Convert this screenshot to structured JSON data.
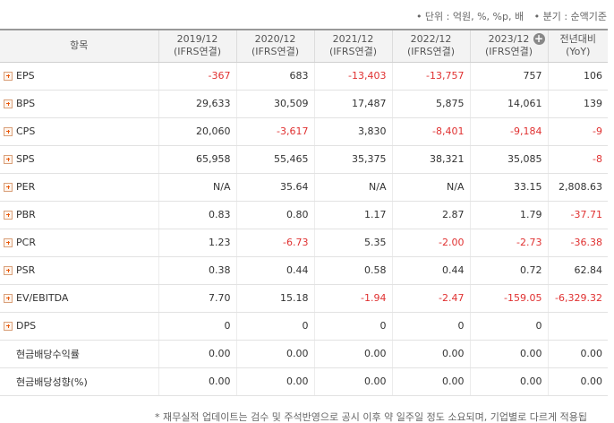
{
  "unit_note": "• 단위 : 억원, %, %p, 배",
  "period_note": "• 분기 : 순액기준",
  "headers": {
    "item": "항목",
    "cols": [
      {
        "line1": "2019/12",
        "line2": "(IFRS연결)"
      },
      {
        "line1": "2020/12",
        "line2": "(IFRS연결)"
      },
      {
        "line1": "2021/12",
        "line2": "(IFRS연결)"
      },
      {
        "line1": "2022/12",
        "line2": "(IFRS연결)"
      },
      {
        "line1": "2023/12",
        "line2": "(IFRS연결)"
      },
      {
        "line1": "전년대비",
        "line2": "(YoY)"
      }
    ]
  },
  "rows": [
    {
      "label": "EPS",
      "values": [
        "-367",
        "683",
        "-13,403",
        "-13,757",
        "757",
        "106"
      ]
    },
    {
      "label": "BPS",
      "values": [
        "29,633",
        "30,509",
        "17,487",
        "5,875",
        "14,061",
        "139"
      ]
    },
    {
      "label": "CPS",
      "values": [
        "20,060",
        "-3,617",
        "3,830",
        "-8,401",
        "-9,184",
        "-9"
      ]
    },
    {
      "label": "SPS",
      "values": [
        "65,958",
        "55,465",
        "35,375",
        "38,321",
        "35,085",
        "-8"
      ]
    },
    {
      "label": "PER",
      "values": [
        "N/A",
        "35.64",
        "N/A",
        "N/A",
        "33.15",
        "2,808.63"
      ]
    },
    {
      "label": "PBR",
      "values": [
        "0.83",
        "0.80",
        "1.17",
        "2.87",
        "1.79",
        "-37.71"
      ]
    },
    {
      "label": "PCR",
      "values": [
        "1.23",
        "-6.73",
        "5.35",
        "-2.00",
        "-2.73",
        "-36.38"
      ]
    },
    {
      "label": "PSR",
      "values": [
        "0.38",
        "0.44",
        "0.58",
        "0.44",
        "0.72",
        "62.84"
      ]
    },
    {
      "label": "EV/EBITDA",
      "values": [
        "7.70",
        "15.18",
        "-1.94",
        "-2.47",
        "-159.05",
        "-6,329.32"
      ]
    },
    {
      "label": "DPS",
      "values": [
        "0",
        "0",
        "0",
        "0",
        "0",
        ""
      ]
    },
    {
      "label": "현금배당수익률",
      "values": [
        "0.00",
        "0.00",
        "0.00",
        "0.00",
        "0.00",
        "0.00"
      ]
    },
    {
      "label": "현금배당성향(%)",
      "values": [
        "0.00",
        "0.00",
        "0.00",
        "0.00",
        "0.00",
        "0.00"
      ]
    }
  ],
  "footnote": "* 재무실적 업데이트는 검수 및 주석반영으로 공시 이후 약 일주일 정도 소요되며, 기업별로 다르게 적용됩"
}
